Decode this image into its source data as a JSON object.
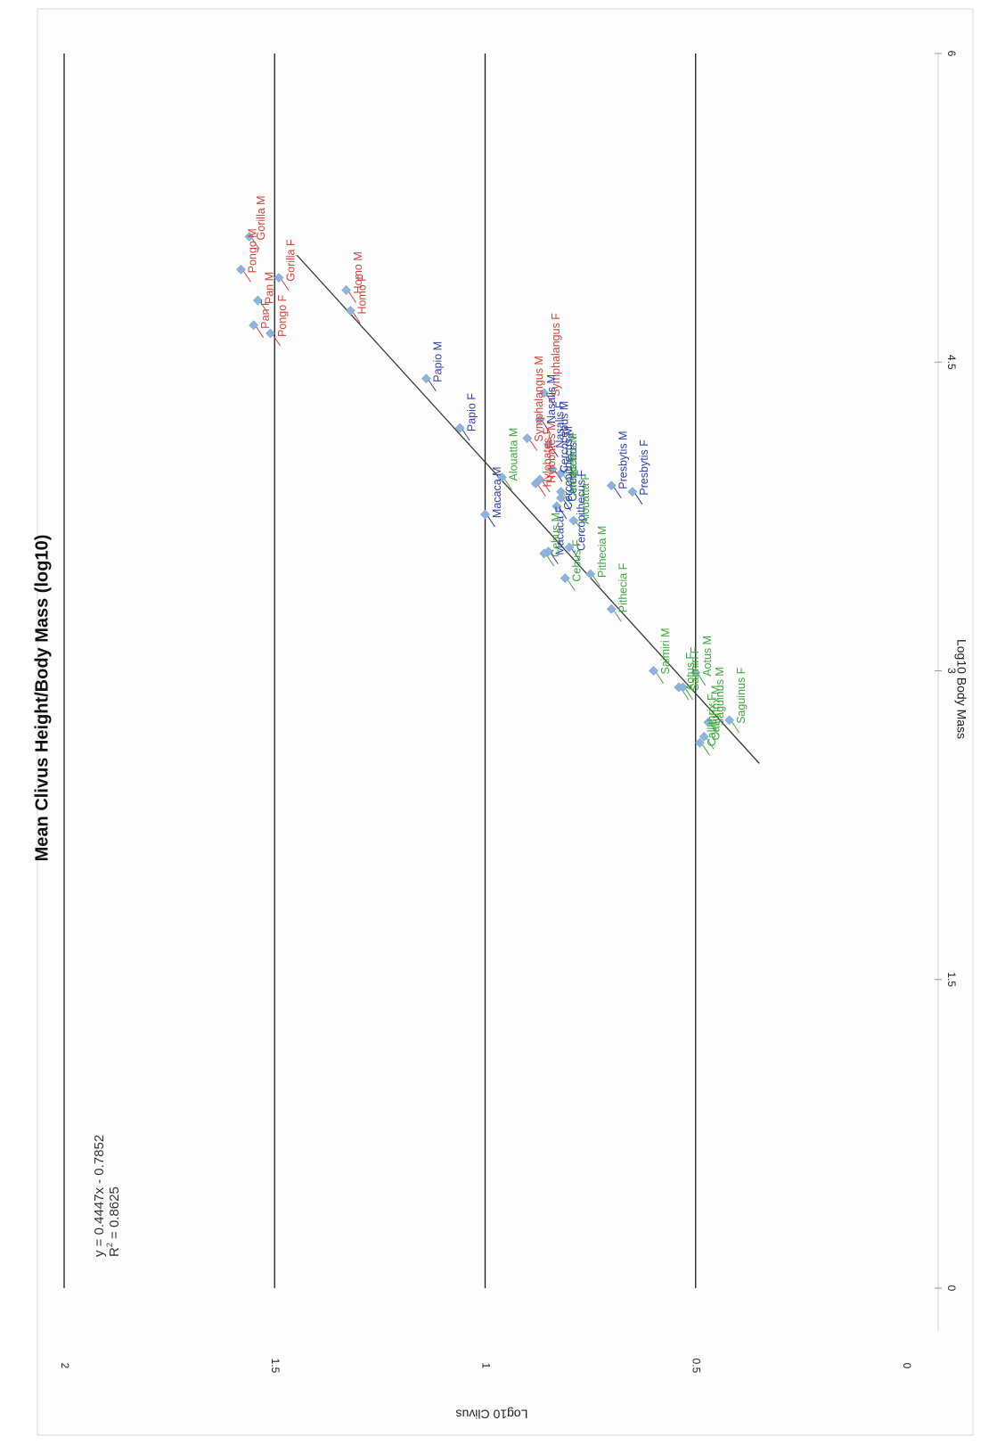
{
  "chart_data": {
    "type": "scatter",
    "title": "Mean Clivus Height/Body Mass (log10)",
    "xlabel": "Log10 Body Mass",
    "ylabel": "Log10 Clivus",
    "xlim": [
      0,
      6
    ],
    "ylim": [
      0,
      2
    ],
    "xticks": [
      "0",
      "1.5",
      "3",
      "4.5",
      "6"
    ],
    "yticks": [
      "0",
      "0.5",
      "1",
      "1.5",
      "2"
    ],
    "grid": "horizontal",
    "orientation": "rotated-90-clockwise",
    "marker_color": "#8fb4dc",
    "trendline": {
      "equation": "y = 0.4447x - 0.7852",
      "r2_prefix": "R",
      "r2_sup": "2",
      "r2_value": " = 0.8625",
      "slope": 0.4447,
      "intercept": -0.7852,
      "x_range": [
        2.55,
        5.02
      ]
    },
    "group_colors": {
      "red": "#d2443b",
      "blue": "#2f3fb3",
      "green": "#3ea93a"
    },
    "points": [
      {
        "label": "Gorilla M",
        "x": 5.11,
        "y": 1.56,
        "group": "red"
      },
      {
        "label": "Gorilla F",
        "x": 4.91,
        "y": 1.49,
        "group": "red"
      },
      {
        "label": "Pongo M",
        "x": 4.95,
        "y": 1.58,
        "group": "red"
      },
      {
        "label": "Pongo F",
        "x": 4.64,
        "y": 1.51,
        "group": "red"
      },
      {
        "label": "Pan M",
        "x": 4.8,
        "y": 1.54,
        "group": "red"
      },
      {
        "label": "Pan F",
        "x": 4.68,
        "y": 1.55,
        "group": "red"
      },
      {
        "label": "Homo M",
        "x": 4.85,
        "y": 1.33,
        "group": "red"
      },
      {
        "label": "Homo F",
        "x": 4.75,
        "y": 1.32,
        "group": "red"
      },
      {
        "label": "Papio M",
        "x": 4.42,
        "y": 1.14,
        "group": "blue"
      },
      {
        "label": "Papio F",
        "x": 4.18,
        "y": 1.06,
        "group": "blue"
      },
      {
        "label": "Hylobates F",
        "x": 3.91,
        "y": 0.88,
        "group": "red"
      },
      {
        "label": "Hylobates M",
        "x": 3.93,
        "y": 0.87,
        "group": "red"
      },
      {
        "label": "Symphalangus M",
        "x": 4.13,
        "y": 0.9,
        "group": "red"
      },
      {
        "label": "Symphalangus F",
        "x": 4.35,
        "y": 0.86,
        "group": "red"
      },
      {
        "label": "Nasalis M",
        "x": 4.22,
        "y": 0.87,
        "group": "blue"
      },
      {
        "label": "Nasalis F",
        "x": 4.1,
        "y": 0.85,
        "group": "blue"
      },
      {
        "label": "Cercocebus M",
        "x": 3.98,
        "y": 0.84,
        "group": "blue"
      },
      {
        "label": "Cercocebus F",
        "x": 3.84,
        "y": 0.82,
        "group": "blue"
      },
      {
        "label": "Ateles M",
        "x": 3.96,
        "y": 0.82,
        "group": "green"
      },
      {
        "label": "Ateles F",
        "x": 3.87,
        "y": 0.82,
        "group": "green"
      },
      {
        "label": "Presbytis M",
        "x": 3.9,
        "y": 0.7,
        "group": "blue"
      },
      {
        "label": "Presbytis F",
        "x": 3.87,
        "y": 0.65,
        "group": "blue"
      },
      {
        "label": "Alouatta M",
        "x": 3.94,
        "y": 0.96,
        "group": "green"
      },
      {
        "label": "Alouatta F",
        "x": 3.73,
        "y": 0.79,
        "group": "green"
      },
      {
        "label": "Macaca M",
        "x": 3.76,
        "y": 1.0,
        "group": "blue"
      },
      {
        "label": "Macaca F",
        "x": 3.58,
        "y": 0.85,
        "group": "blue"
      },
      {
        "label": "Cercopithecus M",
        "x": 3.8,
        "y": 0.83,
        "group": "blue"
      },
      {
        "label": "Cercopithecus F",
        "x": 3.6,
        "y": 0.8,
        "group": "blue"
      },
      {
        "label": "Cebus M",
        "x": 3.57,
        "y": 0.86,
        "group": "green"
      },
      {
        "label": "Cebus F",
        "x": 3.45,
        "y": 0.81,
        "group": "green"
      },
      {
        "label": "Pithecia M",
        "x": 3.47,
        "y": 0.75,
        "group": "green"
      },
      {
        "label": "Pithecia F",
        "x": 3.3,
        "y": 0.7,
        "group": "green"
      },
      {
        "label": "Aotus M",
        "x": 2.99,
        "y": 0.5,
        "group": "green"
      },
      {
        "label": "Aotus F",
        "x": 2.92,
        "y": 0.54,
        "group": "green"
      },
      {
        "label": "Saimiri M",
        "x": 3.0,
        "y": 0.6,
        "group": "green"
      },
      {
        "label": "Saimiri F",
        "x": 2.92,
        "y": 0.53,
        "group": "green"
      },
      {
        "label": "Callithrix F",
        "x": 2.65,
        "y": 0.49,
        "group": "green"
      },
      {
        "label": "Callithrix M",
        "x": 2.68,
        "y": 0.48,
        "group": "green"
      },
      {
        "label": "Saguinus M",
        "x": 2.75,
        "y": 0.47,
        "group": "green"
      },
      {
        "label": "Saguinus F",
        "x": 2.76,
        "y": 0.42,
        "group": "green"
      }
    ]
  }
}
